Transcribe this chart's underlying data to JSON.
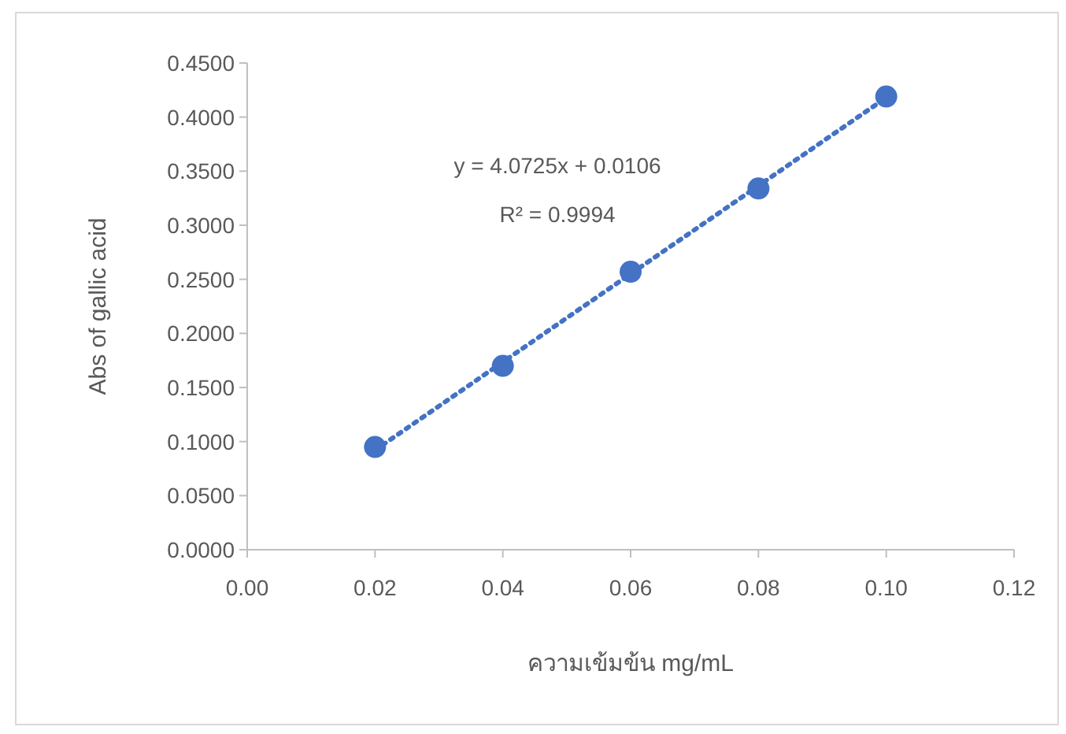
{
  "chart_data": {
    "type": "scatter",
    "xlabel": "ความเข้มข้น mg/mL",
    "ylabel": "Abs of gallic acid",
    "annotations": [
      "y = 4.0725x + 0.0106",
      "R² = 0.9994"
    ],
    "series": [
      {
        "color": "#4472c4",
        "marker": "circle",
        "x": [
          0.02,
          0.04,
          0.06,
          0.08,
          0.1
        ],
        "values": [
          0.095,
          0.17,
          0.257,
          0.334,
          0.419
        ]
      },
      {
        "type": "line",
        "color": "#4472c4",
        "line_style": "dotted",
        "marker": "none",
        "x": [
          0.02,
          0.1
        ],
        "values": [
          0.092,
          0.418
        ]
      }
    ],
    "xlim": [
      0,
      0.12
    ],
    "ylim": [
      0,
      0.45
    ],
    "xticks": [
      {
        "value": 0,
        "label": "0.00"
      },
      {
        "value": 0.02,
        "label": "0.02"
      },
      {
        "value": 0.04,
        "label": "0.04"
      },
      {
        "value": 0.06,
        "label": "0.06"
      },
      {
        "value": 0.08,
        "label": "0.08"
      },
      {
        "value": 0.1,
        "label": "0.10"
      },
      {
        "value": 0.12,
        "label": "0.12"
      }
    ],
    "yticks": [
      {
        "value": 0,
        "label": "0.0000"
      },
      {
        "value": 0.05,
        "label": "0.0500"
      },
      {
        "value": 0.1,
        "label": "0.1000"
      },
      {
        "value": 0.15,
        "label": "0.1500"
      },
      {
        "value": 0.2,
        "label": "0.2000"
      },
      {
        "value": 0.25,
        "label": "0.2500"
      },
      {
        "value": 0.3,
        "label": "0.3000"
      },
      {
        "value": 0.35,
        "label": "0.3500"
      },
      {
        "value": 0.4,
        "label": "0.4000"
      },
      {
        "value": 0.45,
        "label": "0.4500"
      }
    ],
    "grid": false
  }
}
